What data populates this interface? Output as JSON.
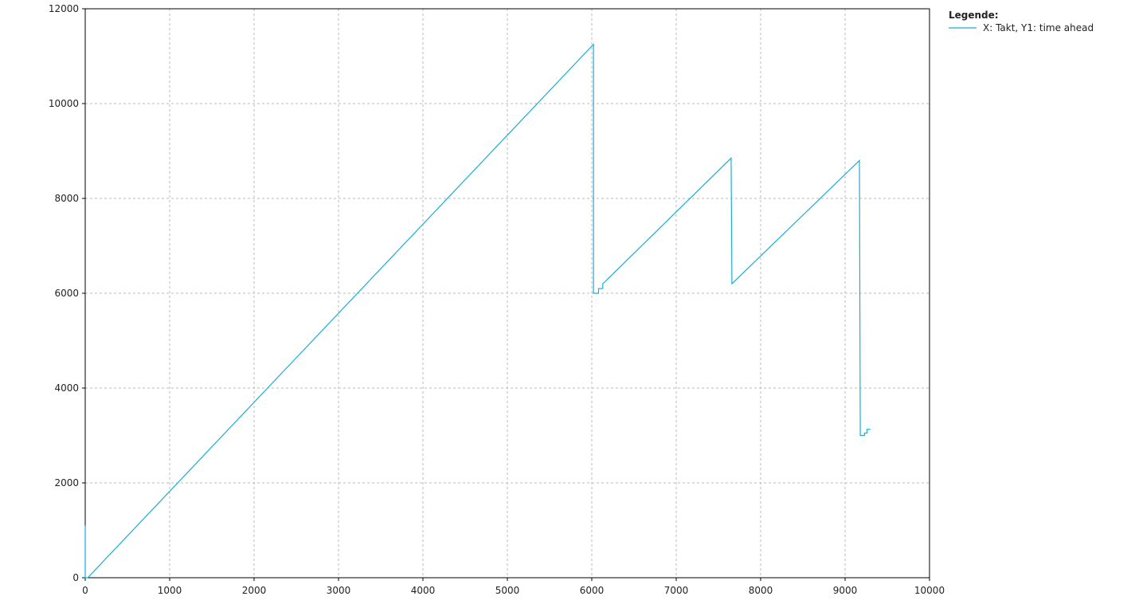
{
  "chart_data": {
    "type": "line",
    "legend_title": "Legende:",
    "legend": "upper right",
    "grid": true,
    "xlim": [
      0,
      10000
    ],
    "xticks": [
      0,
      1000,
      2000,
      3000,
      4000,
      5000,
      6000,
      7000,
      8000,
      9000,
      10000
    ],
    "ylim": [
      0,
      12000
    ],
    "yticks": [
      0,
      2000,
      4000,
      6000,
      8000,
      10000,
      12000
    ],
    "x": [
      0,
      0,
      30,
      6020,
      6020,
      6080,
      6080,
      6130,
      6130,
      6160,
      7650,
      7660,
      9170,
      9180,
      9230,
      9230,
      9260,
      9260,
      9300
    ],
    "series": [
      {
        "name": "X: Takt, Y1: time ahead",
        "color": "#1aaed6",
        "values": [
          1100,
          0,
          0,
          11250,
          6000,
          6000,
          6100,
          6100,
          6200,
          6250,
          8850,
          6200,
          8800,
          3000,
          3000,
          3050,
          3050,
          3130,
          3130
        ]
      }
    ]
  }
}
